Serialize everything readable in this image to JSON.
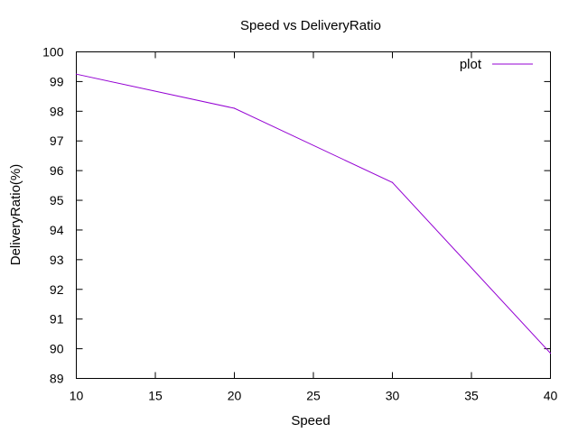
{
  "chart_data": {
    "type": "line",
    "title": "Speed vs DeliveryRatio",
    "xlabel": "Speed",
    "ylabel": "DeliveryRatio(%)",
    "xlim": [
      10,
      40
    ],
    "ylim": [
      89,
      100
    ],
    "x_ticks": [
      "10",
      "15",
      "20",
      "25",
      "30",
      "35",
      "40"
    ],
    "y_ticks": [
      "89",
      "90",
      "91",
      "92",
      "93",
      "94",
      "95",
      "96",
      "97",
      "98",
      "99",
      "100"
    ],
    "grid": false,
    "legend_position": "top-right",
    "series": [
      {
        "name": "plot",
        "color": "#9400d3",
        "x": [
          10,
          20,
          30,
          40
        ],
        "y": [
          99.25,
          98.1,
          95.6,
          89.85
        ]
      }
    ]
  }
}
